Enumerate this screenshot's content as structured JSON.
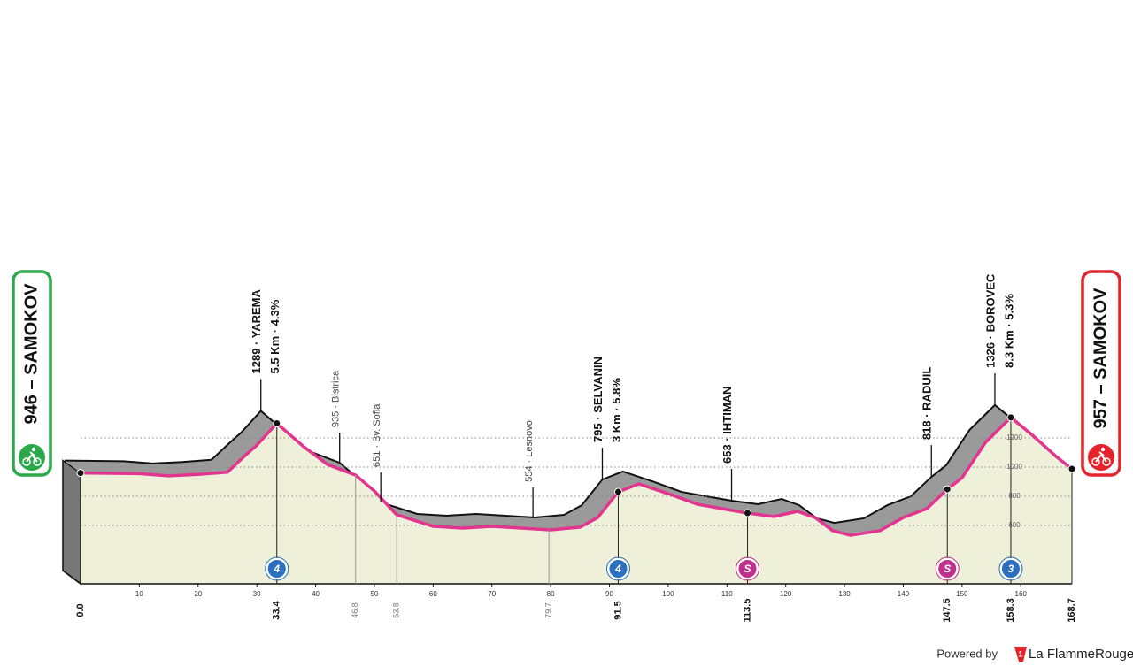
{
  "chart_data": {
    "type": "profile",
    "x": [
      0,
      10,
      15,
      20,
      25,
      28,
      30,
      33.4,
      38,
      42,
      46.8,
      50,
      53.8,
      60,
      65,
      70,
      75,
      80,
      85,
      88,
      91.5,
      95,
      100,
      105,
      110,
      113.5,
      118,
      122,
      125,
      128,
      131,
      136,
      140,
      144,
      147.5,
      150,
      154,
      158.3,
      162,
      166,
      168.7
    ],
    "values": [
      960,
      955,
      940,
      950,
      965,
      1079,
      1150,
      1300,
      1139,
      1018,
      945,
      836,
      673,
      594,
      582,
      594,
      582,
      570,
      588,
      654,
      830,
      885,
      818,
      745,
      709,
      685,
      661,
      697,
      654,
      564,
      533,
      564,
      654,
      715,
      848,
      927,
      1170,
      1340,
      1218,
      1073,
      988
    ],
    "xlim": [
      0,
      168.7
    ],
    "ylim": [
      200,
      1400
    ],
    "xticks": [
      10,
      20,
      30,
      40,
      50,
      60,
      70,
      80,
      90,
      100,
      110,
      120,
      130,
      140,
      150,
      160
    ],
    "yticks": [
      600,
      800,
      1000,
      1200
    ],
    "grid": true,
    "color": "#e2358f",
    "start": {
      "label": "946 – SAMOKOV",
      "color": "#2aa84a"
    },
    "finish": {
      "label": "957 – SAMOKOV",
      "color": "#e5232a"
    },
    "markers": [
      {
        "km": {
          "value": 0,
          "label": "0.0"
        }
      },
      {
        "km": 33.4,
        "annotation": [
          "1289 · YAREMA",
          "5.5 Km · 4.3%"
        ],
        "badge": "4",
        "badge_color": "#2a6fc0"
      },
      {
        "km": 46.8,
        "annotation": [
          "935 · Bistrica"
        ],
        "minor": true
      },
      {
        "km": 53.8,
        "annotation": [
          "651 · Bv. Sofia"
        ],
        "minor": true
      },
      {
        "km": 79.7,
        "annotation": [
          "554 · Lesnovo"
        ],
        "minor": true
      },
      {
        "km": 91.5,
        "annotation": [
          "795 · SELVANIN",
          "3 Km · 5.8%"
        ],
        "badge": "4",
        "badge_color": "#2a6fc0"
      },
      {
        "km": 113.5,
        "annotation": [
          "653 · IHTIMAN"
        ],
        "badge": "S",
        "badge_color": "#c02f8c"
      },
      {
        "km": 147.5,
        "annotation": [
          "818 · RADUIL"
        ],
        "badge": "S",
        "badge_color": "#c02f8c"
      },
      {
        "km": 158.3,
        "annotation": [
          "1326 · BOROVEC",
          "8.3 Km · 5.3%"
        ],
        "badge": "3",
        "badge_color": "#2a6fc0"
      },
      {
        "km": 168.7
      }
    ],
    "footer": {
      "powered": "Powered by",
      "brand": "La FlammeRouge"
    }
  }
}
